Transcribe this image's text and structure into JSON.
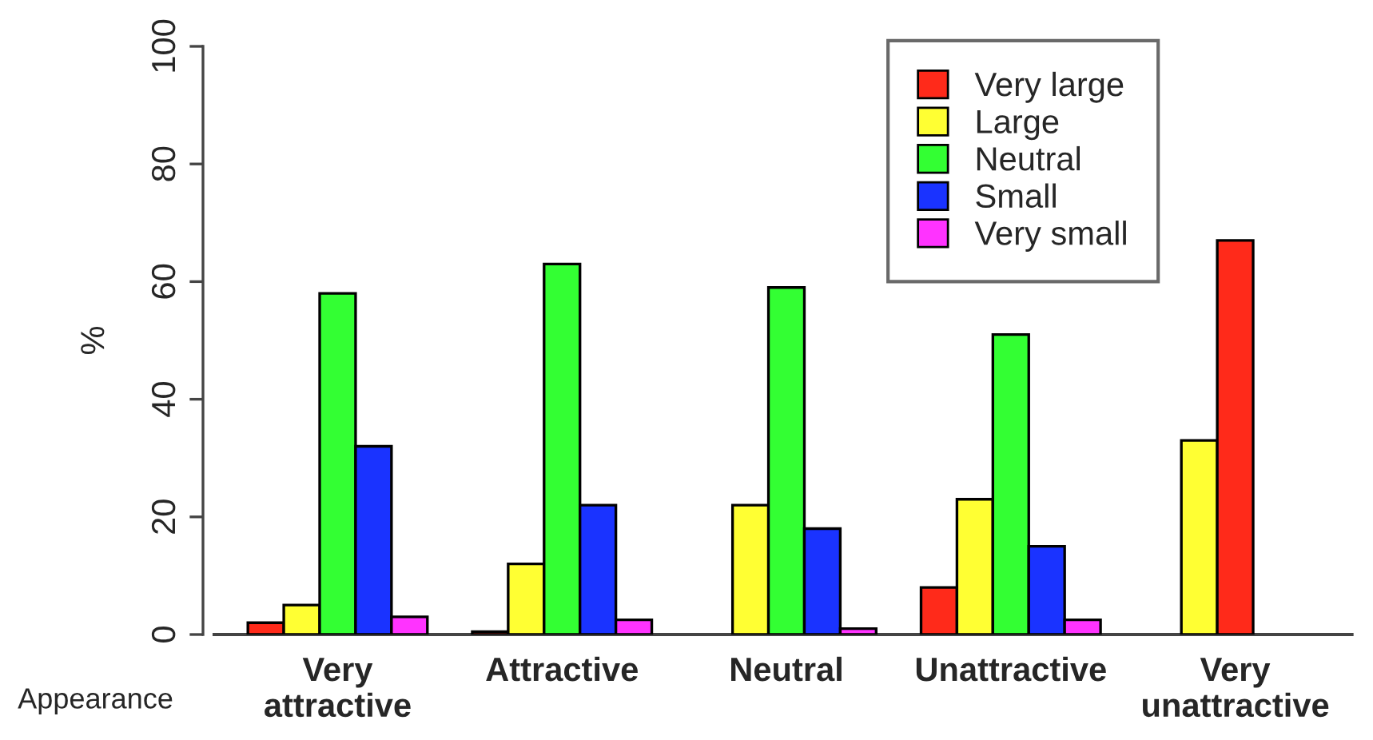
{
  "chart_data": {
    "type": "bar",
    "xlabel": "Appearance",
    "ylabel": "%",
    "categories": [
      "Very\nattractive",
      "Attractive",
      "Neutral",
      "Unattractive",
      "Very\nunattractive"
    ],
    "series": [
      {
        "name": "Very large",
        "color": "#ff2a1a",
        "values": [
          2,
          0.5,
          0,
          8,
          0
        ]
      },
      {
        "name": "Large",
        "color": "#ffff33",
        "values": [
          5,
          12,
          22,
          23,
          33
        ]
      },
      {
        "name": "Neutral",
        "color": "#33ff33",
        "colors": [
          "#33ff33",
          "#33ff33",
          "#33ff33",
          "#33ff33",
          "#ff2a1a"
        ],
        "values": [
          58,
          63,
          59,
          51,
          67
        ]
      },
      {
        "name": "Small",
        "color": "#1a33ff",
        "values": [
          32,
          22,
          18,
          15,
          0
        ]
      },
      {
        "name": "Very small",
        "color": "#ff33ff",
        "values": [
          3,
          2.5,
          1,
          2.5,
          0
        ]
      }
    ],
    "ylim": [
      0,
      100
    ],
    "yticks": [
      0,
      20,
      40,
      60,
      80,
      100
    ],
    "grid": false,
    "legend": "top right"
  }
}
